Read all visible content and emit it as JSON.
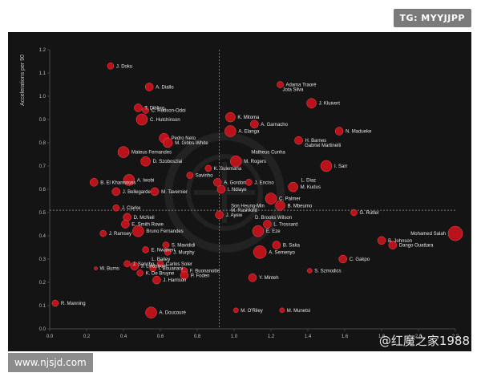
{
  "watermarks": {
    "badge": "TG: MYYJJPP",
    "site": "www.njsjd.com",
    "weibo": "@红魔之家1988"
  },
  "chart_data": {
    "type": "scatter",
    "title": "",
    "xlabel": "",
    "ylabel": "Accelerations per 90",
    "xlim": [
      0,
      2.2
    ],
    "ylim": [
      0,
      1.2
    ],
    "xticks": [
      "0.0",
      "0.2",
      "0.4",
      "0.6",
      "0.8",
      "1.0",
      "1.2",
      "1.4",
      "1.6",
      "1.8",
      "2.0",
      "2.2"
    ],
    "yticks": [
      "0.0",
      "0.1",
      "0.2",
      "0.3",
      "0.4",
      "0.5",
      "0.6",
      "0.7",
      "0.8",
      "0.9",
      "1.0",
      "1.1",
      "1.2"
    ],
    "reference_lines": {
      "x": 0.92,
      "y": 0.51
    },
    "point_color": "#c8121b",
    "points": [
      {
        "label": "J. Doku",
        "x": 0.33,
        "y": 1.13,
        "s": 4
      },
      {
        "label": "A. Diallo",
        "x": 0.54,
        "y": 1.04,
        "s": 5
      },
      {
        "label": "Adama Traoré",
        "x": 1.25,
        "y": 1.05,
        "s": 4
      },
      {
        "label": "Jota Silva",
        "x": 1.25,
        "y": 1.03,
        "s": 0
      },
      {
        "label": "J. Kluivert",
        "x": 1.42,
        "y": 0.97,
        "s": 6
      },
      {
        "label": "T. Dibling",
        "x": 0.48,
        "y": 0.95,
        "s": 5
      },
      {
        "label": "C. Hudson-Odoi",
        "x": 0.52,
        "y": 0.94,
        "s": 4
      },
      {
        "label": "C. Hutchinson",
        "x": 0.5,
        "y": 0.9,
        "s": 7
      },
      {
        "label": "K. Mitoma",
        "x": 0.98,
        "y": 0.91,
        "s": 6
      },
      {
        "label": "A. Garnacho",
        "x": 1.11,
        "y": 0.88,
        "s": 5
      },
      {
        "label": "A. Elanga",
        "x": 0.98,
        "y": 0.85,
        "s": 7
      },
      {
        "label": "N. Madueke",
        "x": 1.57,
        "y": 0.85,
        "s": 5
      },
      {
        "label": "Pedro Neto",
        "x": 0.62,
        "y": 0.82,
        "s": 6
      },
      {
        "label": "M. Gibbs-White",
        "x": 0.64,
        "y": 0.8,
        "s": 6
      },
      {
        "label": "H. Barnes",
        "x": 1.35,
        "y": 0.81,
        "s": 5
      },
      {
        "label": "Gabriel Martinelli",
        "x": 1.37,
        "y": 0.79,
        "s": 0
      },
      {
        "label": "Matheus Cunha",
        "x": 1.08,
        "y": 0.76,
        "s": 0
      },
      {
        "label": "Mateus Fernandes",
        "x": 0.4,
        "y": 0.76,
        "s": 7
      },
      {
        "label": "D. Szoboszlai",
        "x": 0.52,
        "y": 0.72,
        "s": 6
      },
      {
        "label": "M. Rogers",
        "x": 1.01,
        "y": 0.72,
        "s": 7
      },
      {
        "label": "I. Sarr",
        "x": 1.5,
        "y": 0.7,
        "s": 7
      },
      {
        "label": "K. Sulemana",
        "x": 0.86,
        "y": 0.69,
        "s": 4
      },
      {
        "label": "Savinho",
        "x": 0.76,
        "y": 0.66,
        "s": 4
      },
      {
        "label": "L. Diaz",
        "x": 1.35,
        "y": 0.64,
        "s": 0
      },
      {
        "label": "B. El Khannouss",
        "x": 0.24,
        "y": 0.63,
        "s": 5
      },
      {
        "label": "A. Iwobi",
        "x": 0.43,
        "y": 0.64,
        "s": 7
      },
      {
        "label": "A. Gordon",
        "x": 0.91,
        "y": 0.63,
        "s": 5
      },
      {
        "label": "J. Enciso",
        "x": 1.08,
        "y": 0.63,
        "s": 4
      },
      {
        "label": "J. Bellegarde",
        "x": 0.36,
        "y": 0.59,
        "s": 5
      },
      {
        "label": "M. Tavernier",
        "x": 0.57,
        "y": 0.59,
        "s": 5
      },
      {
        "label": "I. Ndiaye",
        "x": 0.93,
        "y": 0.6,
        "s": 5
      },
      {
        "label": "M. Kudus",
        "x": 1.32,
        "y": 0.61,
        "s": 6
      },
      {
        "label": "C. Palmer",
        "x": 1.2,
        "y": 0.56,
        "s": 7
      },
      {
        "label": "Son Heung-Min",
        "x": 0.97,
        "y": 0.53,
        "s": 0
      },
      {
        "label": "B. Mbeumo",
        "x": 1.25,
        "y": 0.53,
        "s": 6
      },
      {
        "label": "J. Clarke",
        "x": 0.36,
        "y": 0.52,
        "s": 4
      },
      {
        "label": "M. Rashford",
        "x": 0.97,
        "y": 0.51,
        "s": 0
      },
      {
        "label": "J. Ayew",
        "x": 0.92,
        "y": 0.49,
        "s": 5
      },
      {
        "label": "G. Rutter",
        "x": 1.65,
        "y": 0.5,
        "s": 4
      },
      {
        "label": "D. Brooks Wilson",
        "x": 1.1,
        "y": 0.48,
        "s": 0
      },
      {
        "label": "D. McNeil",
        "x": 0.42,
        "y": 0.48,
        "s": 5
      },
      {
        "label": "E. Smith Rowe",
        "x": 0.41,
        "y": 0.45,
        "s": 5
      },
      {
        "label": "L. Trossard",
        "x": 1.18,
        "y": 0.45,
        "s": 5
      },
      {
        "label": "Bruno Fernandes",
        "x": 0.48,
        "y": 0.42,
        "s": 7
      },
      {
        "label": "E. Eze",
        "x": 1.13,
        "y": 0.42,
        "s": 7
      },
      {
        "label": "J. Ramsey",
        "x": 0.29,
        "y": 0.41,
        "s": 4
      },
      {
        "label": "Mohamed Salah",
        "x": 2.2,
        "y": 0.41,
        "s": 9
      },
      {
        "label": "B. Johnson",
        "x": 1.8,
        "y": 0.38,
        "s": 5
      },
      {
        "label": "Dango Ouattara",
        "x": 1.86,
        "y": 0.36,
        "s": 5
      },
      {
        "label": "S. Mavididi",
        "x": 0.63,
        "y": 0.36,
        "s": 4
      },
      {
        "label": "E. Nwaneri",
        "x": 0.52,
        "y": 0.34,
        "s": 4
      },
      {
        "label": "B. Saka",
        "x": 1.23,
        "y": 0.36,
        "s": 5
      },
      {
        "label": "J. Murphy",
        "x": 0.64,
        "y": 0.33,
        "s": 4
      },
      {
        "label": "A. Semenyo",
        "x": 1.14,
        "y": 0.33,
        "s": 8
      },
      {
        "label": "L. Bailey",
        "x": 0.54,
        "y": 0.3,
        "s": 0
      },
      {
        "label": "C. Gakpo",
        "x": 1.59,
        "y": 0.3,
        "s": 5
      },
      {
        "label": "J. Sancho",
        "x": 0.42,
        "y": 0.28,
        "s": 4
      },
      {
        "label": "Carlos Soler",
        "x": 0.6,
        "y": 0.28,
        "s": 4
      },
      {
        "label": "J. Lindstrom",
        "x": 0.46,
        "y": 0.27,
        "s": 5
      },
      {
        "label": "W. Burns",
        "x": 0.25,
        "y": 0.26,
        "s": 2
      },
      {
        "label": "I. Bouanani",
        "x": 0.56,
        "y": 0.26,
        "s": 4
      },
      {
        "label": "F. Buonanotte",
        "x": 0.73,
        "y": 0.25,
        "s": 4
      },
      {
        "label": "S. Szmodics",
        "x": 1.41,
        "y": 0.25,
        "s": 3
      },
      {
        "label": "K. De Bruyne",
        "x": 0.49,
        "y": 0.24,
        "s": 4
      },
      {
        "label": "P. Foden",
        "x": 0.73,
        "y": 0.23,
        "s": 5
      },
      {
        "label": "Y. Minteh",
        "x": 1.1,
        "y": 0.22,
        "s": 5
      },
      {
        "label": "J. Harrison",
        "x": 0.58,
        "y": 0.21,
        "s": 5
      },
      {
        "label": "R. Manning",
        "x": 0.03,
        "y": 0.11,
        "s": 4
      },
      {
        "label": "A. Doucouré",
        "x": 0.55,
        "y": 0.07,
        "s": 7
      },
      {
        "label": "M. O'Riley",
        "x": 1.01,
        "y": 0.08,
        "s": 3
      },
      {
        "label": "M. Munetsi",
        "x": 1.26,
        "y": 0.08,
        "s": 3
      }
    ]
  }
}
